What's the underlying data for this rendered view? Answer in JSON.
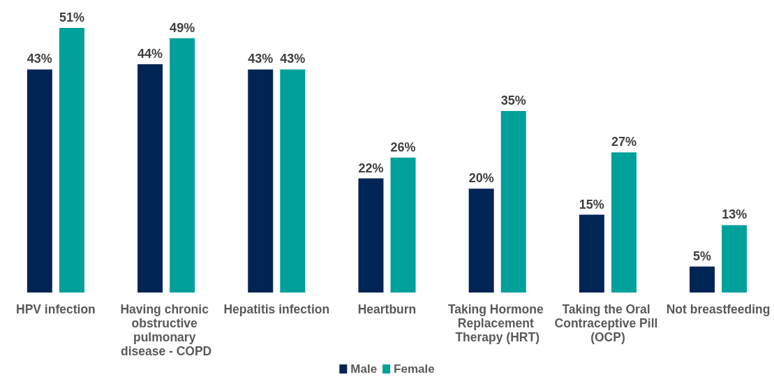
{
  "chart_data": {
    "type": "bar",
    "categories": [
      "HPV infection",
      "Having chronic obstructive pulmonary disease - COPD",
      "Hepatitis infection",
      "Heartburn",
      "Taking Hormone Replacement Therapy (HRT)",
      "Taking the Oral Contraceptive Pill (OCP)",
      "Not breastfeeding"
    ],
    "series": [
      {
        "name": "Male",
        "color": "#002554",
        "values": [
          43,
          44,
          43,
          22,
          20,
          15,
          5
        ],
        "value_labels": [
          "43%",
          "44%",
          "43%",
          "22%",
          "20%",
          "15%",
          "5%"
        ]
      },
      {
        "name": "Female",
        "color": "#00a09b",
        "values": [
          51,
          49,
          43,
          26,
          35,
          27,
          13
        ],
        "value_labels": [
          "51%",
          "49%",
          "43%",
          "26%",
          "35%",
          "27%",
          "13%"
        ]
      }
    ],
    "legend": "bottom",
    "grid": false,
    "tick_labels": "x"
  }
}
